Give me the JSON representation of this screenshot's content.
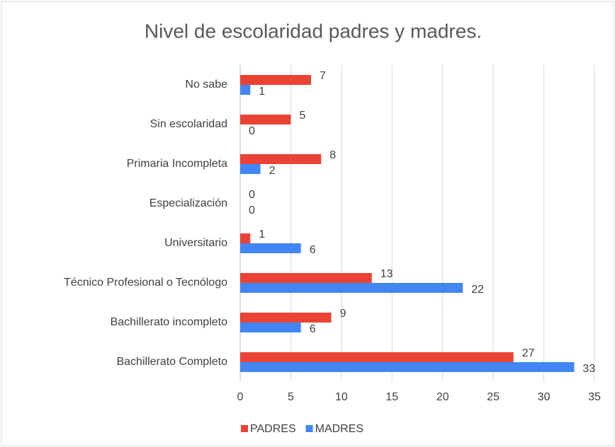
{
  "chart_data": {
    "type": "hbar",
    "title": "Nivel de escolaridad padres y madres.",
    "categories": [
      "No sabe",
      "Sin escolaridad",
      "Primaria Incompleta",
      "Especialización",
      "Universitario",
      "Técnico Profesional o Tecnólogo",
      "Bachillerato incompleto",
      "Bachillerato Completo"
    ],
    "series": [
      {
        "name": "PADRES",
        "color": "#ea4335",
        "values": [
          7,
          5,
          8,
          0,
          1,
          13,
          9,
          27
        ]
      },
      {
        "name": "MADRES",
        "color": "#4285f4",
        "values": [
          1,
          0,
          2,
          0,
          6,
          22,
          6,
          33
        ]
      }
    ],
    "xlim": [
      0,
      35
    ],
    "xticks": [
      0,
      5,
      10,
      15,
      20,
      25,
      30,
      35
    ],
    "grid": true,
    "legend": "bottom"
  }
}
